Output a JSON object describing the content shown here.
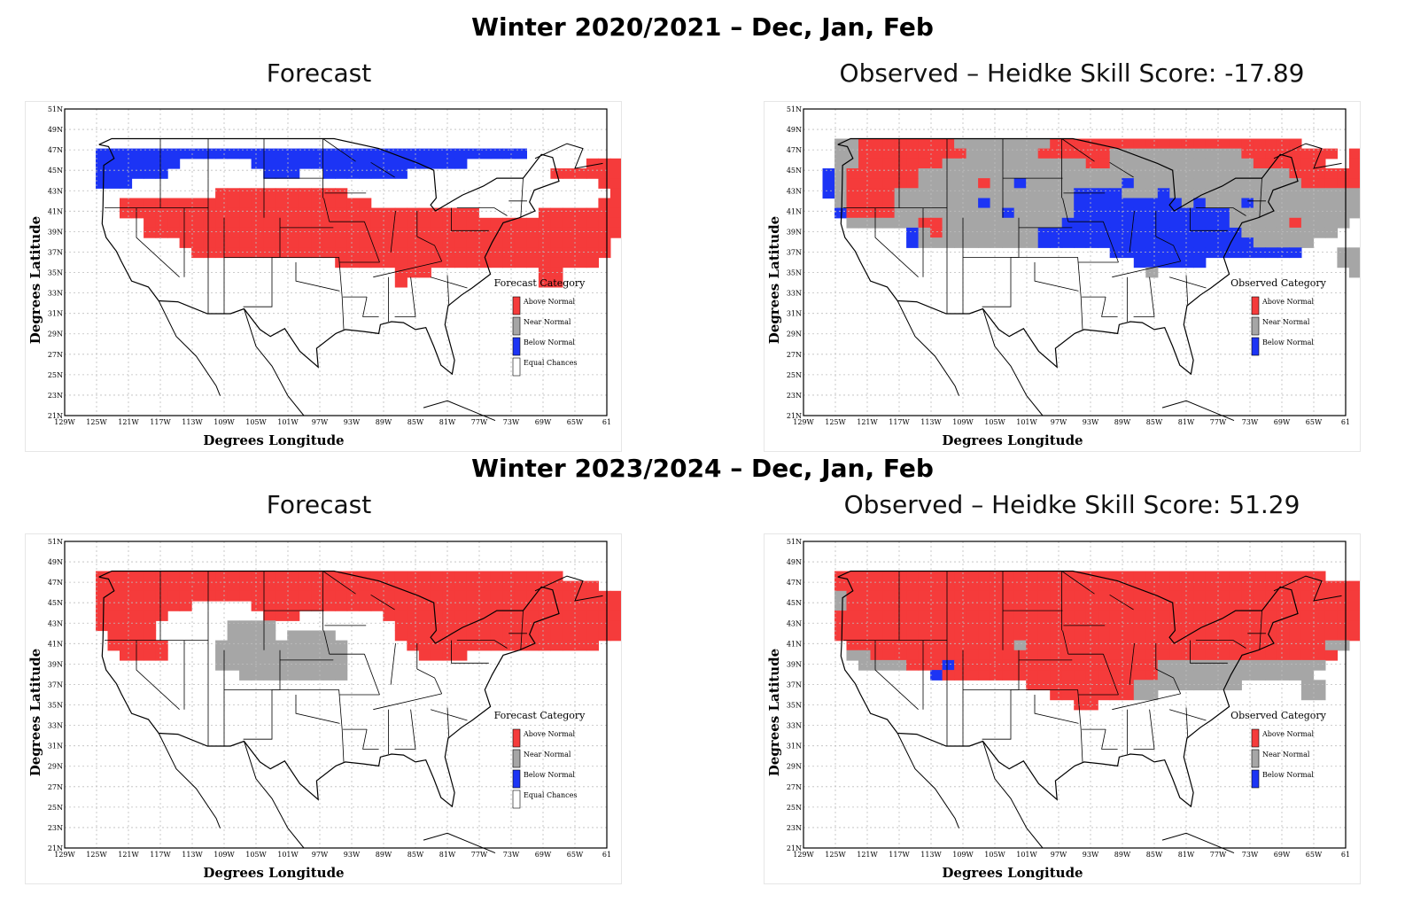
{
  "rows": [
    {
      "title": "Winter 2020/2021 – Dec, Jan, Feb",
      "panels": [
        {
          "title": "Forecast",
          "legend_title": "Forecast Category",
          "legend": [
            "Above Normal",
            "Near Normal",
            "Below Normal",
            "Equal Chances"
          ]
        },
        {
          "title": "Observed – Heidke Skill Score: -17.89",
          "legend_title": "Observed Category",
          "legend": [
            "Above Normal",
            "Near Normal",
            "Below Normal"
          ]
        }
      ]
    },
    {
      "title": "Winter 2023/2024 – Dec, Jan, Feb",
      "panels": [
        {
          "title": "Forecast",
          "legend_title": "Forecast Category",
          "legend": [
            "Above Normal",
            "Near Normal",
            "Below Normal",
            "Equal Chances"
          ]
        },
        {
          "title": "Observed – Heidke Skill Score: 51.29",
          "legend_title": "Observed Category",
          "legend": [
            "Above Normal",
            "Near Normal",
            "Below Normal"
          ]
        }
      ]
    }
  ],
  "axes": {
    "xlabel": "Degrees Longitude",
    "ylabel": "Degrees Latitude",
    "lon_ticks": [
      "129W",
      "125W",
      "121W",
      "117W",
      "113W",
      "109W",
      "105W",
      "101W",
      "97W",
      "93W",
      "89W",
      "85W",
      "81W",
      "77W",
      "73W",
      "69W",
      "65W",
      "61"
    ],
    "lat_ticks": [
      "21N",
      "23N",
      "25N",
      "27N",
      "29N",
      "31N",
      "33N",
      "35N",
      "37N",
      "39N",
      "41N",
      "43N",
      "45N",
      "47N",
      "49N",
      "51N"
    ]
  },
  "colors": {
    "above": "#f53b3b",
    "near": "#a6a6a6",
    "below": "#1c34f5",
    "equal": "#ffffff"
  },
  "maps": [
    {
      "grid": [
        "..........................................",
        "..........................................",
        "..BBBBBBBBBBBBBBBBBBBBBBBBBBBBBBBBBBBB.....",
        "..BBBBBBB......BBBBBBBBBBBBBBBBBB..........RRR..",
        "..BBBBBB........BBB..BBBBBBB............RRRRRR",
        "..BBB.......................................RRRRRRRRR",
        "............RRRRRRRRRRR......................RRRRRRRR",
        "....RRRRRRRRRRRRRRRRRRRRR...................RRRRRRR",
        "....RRRRRRRRRRRRRRRRRRRRRRRRRRRRRR.....RRRRRRRRRR",
        "......RRRRRRRRRRRRRRRRRRRRRRRRRRRRRRRRRRRRRRRRR",
        "......RRRRRRRRRRRRRRRRRRRRRRRRRRRRRRRRRRRRRRRR",
        ".........RRRRRRRRRRRRRRRRRRRRRRRRRRRRRRRRRRRR",
        "..........RRRRRRRRRRRRRRRRRRRRRRRRRRRRRRRRRRR",
        "......................RRRRRRRRRRRRRRRRRRRRRR",
        "...........................RRR.........RR",
        "...........................R...........RR"
      ]
    },
    {
      "grid": [
        "..........................................",
        "..GGRRRRRRRRGGGGGGGGRRRRRRRRRRRRRRRRRRRRR......",
        "..GGRRRRRRRRRGGGGGGRRRRRRGGGGGGGGGGGRRRRRRRR.RRRR",
        "..GGRRRRRRRGGGGGGGGGGGGRRGGGGGGGGGGGGRRRRRR..RRRRRR",
        ".BGRRRRRRGGGGGGGGGGGGGGGGGGGGGGGGGGGGGGGRRRRRRRRRR",
        ".BGRRRRRRGGGGGRGGBGGGGGGGGBGGGGGGGGGGGGGGRRRRRRRRB",
        ".BGRRRRGGGGGGGGGGGGGGGBBBBGGGBGGGGGGGGGGGGGGGGGGG",
        "..GRRRRGGGGGGGBGGGGGGGBBBBBBBBBGBGGGBGGGGGGGGGGG",
        "..BRRRRGGGGGGGGGBGGGGGBBBBBBBBBBBBBGGGGGGGGGGGGB",
        "...GGGGGGRRGGGGGGGGGGBBBBBBBBBBBBBBGGGGGRGGGG",
        "........BGRGGGGGGGGBBBBBBBBBBBBBBBBBGGGGGGGG",
        "........BGGGGGGGGGGBBBBBBBBBBBBBBBBBBGGGGG",
        ".........................BBBBBBBBBBBBBBBB...GG",
        "...........................BBBBBB...........GG",
        "............................G................GG"
      ]
    },
    {
      "grid": [
        "..........................................",
        "..RRRRRRRRRRRRRRRRRRRRRRRRRRRRRRRRRRRRRRR........",
        "..RRRRRRRRRRRRRRRRRRRRRRRRRRRRRRRRRRRRRRRRRR..RRRR",
        "..RRRRRRRRRRRRRRRRRRRRRRRRRRRRRRRRRRRRRRRRRRRRRRRR",
        "..RRRRRRRR.....RRRRRRRRRRRRRRRRRRRRRRRRRRRRRRRRRR",
        "..RRRRRR........RRR.......RRRRRRRRRRRRRRRRRRRRR",
        "..RRRRR......GGGG..........RRRRRRRRRRRRRRRRRRR",
        "...RRRR......GGGG.GGGG.....RRRRRRRRRRRRRRRRRRR",
        "...RRRRR....GGGGGGGGGGG.....RRRRRRRRRRRRRRRR",
        "....RRRR....GGGGGGGGGGG......RRRR",
        "............GGGGGGGGGGG",
        "..............GGGGGGGGG"
      ]
    },
    {
      "grid": [
        "..........................................",
        "..RRRRRRRRRRRRRRRRRRRRRRRRRRRRRRRRRRRRRRRRR......",
        "..RRRRRRRRRRRRRRRRRRRRRRRRRRRRRRRRRRRRRRRRRRRRRRRR",
        "..GRRRRRRRRRRRRRRRRRRRRRRRRRRRRRRRRRRRRRRRRRRRRRRR",
        "..GRRRRRRRRRRRRRRRRRRRRRRRRRRRRRRRRRRRRRRRRRRRRRRR",
        "..RRRRRRRRRRRRRRRRRRRRRRRRRRRRRRRRRRRRRRRRRRRRRRR",
        "..RRRRRRRRRRRRRRRRRRRRRRRRRRRRRRRRRRRRRRRRRRRRR",
        "..RRRRRRRRRRRRRRRRRRRRRRRRRRRRRRRRRRRRRRRRRRRRR",
        "...RRRRRRRRRRRRRRGRRRRRRRRRRRRRRRRRRRRRRRRRGG",
        "...GGRRRRRRRRRRRRRRRRRRRRRRRRRRRRRRRRRRRRRRR",
        "....GGGGRRRBRRRRRRRRRRRRRRRRRGGGGGGGGGGGGGG",
        "..........BRRRRRRRRRRRRRRRRRRGGGGGGGGGGGGG",
        "..................RRRRRRRRRGGGGGGGGG.....GG",
        "....................RRRRRRRGG............GG",
        "......................RR.................."
      ]
    }
  ]
}
